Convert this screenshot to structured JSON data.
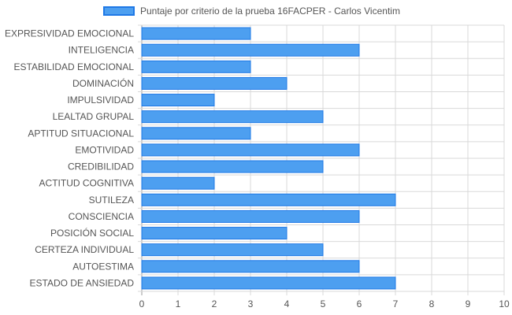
{
  "colors": {
    "bar_fill": "#4d9ff0",
    "bar_border": "#1e78e6",
    "grid": "#d9d9d9",
    "axis_text": "#555555",
    "background": "#ffffff"
  },
  "chart_data": {
    "type": "bar",
    "orientation": "horizontal",
    "categories": [
      "EXPRESIVIDAD EMOCIONAL",
      "INTELIGENCIA",
      "ESTABILIDAD EMOCIONAL",
      "DOMINACIÓN",
      "IMPULSIVIDAD",
      "LEALTAD GRUPAL",
      "APTITUD SITUACIONAL",
      "EMOTIVIDAD",
      "CREDIBILIDAD",
      "ACTITUD COGNITIVA",
      "SUTILEZA",
      "CONSCIENCIA",
      "POSICIÓN SOCIAL",
      "CERTEZA INDIVIDUAL",
      "AUTOESTIMA",
      "ESTADO DE ANSIEDAD"
    ],
    "series": [
      {
        "name": "Puntaje por criterio de la prueba 16FACPER - Carlos Vicentim",
        "values": [
          3,
          6,
          3,
          4,
          2,
          5,
          3,
          6,
          5,
          2,
          7,
          6,
          4,
          5,
          6,
          7
        ]
      }
    ],
    "xlim": [
      0,
      10
    ],
    "xticks": [
      "0",
      "1",
      "2",
      "3",
      "4",
      "5",
      "6",
      "7",
      "8",
      "9",
      "10"
    ],
    "grid": true,
    "legend_position": "top-center"
  }
}
